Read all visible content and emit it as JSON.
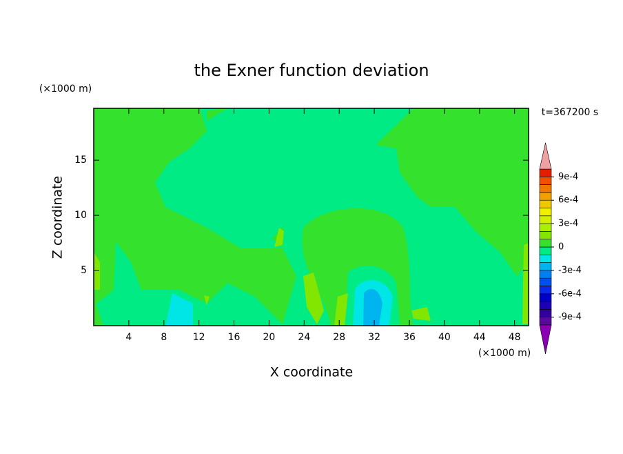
{
  "chart_data": {
    "type": "contour",
    "title": "the Exner function deviation",
    "x_label": "X coordinate",
    "y_label": "Z coordinate",
    "x_unit": "(×1000 m)",
    "y_unit": "(×1000 m)",
    "annotation": "t=367200 s",
    "xlim": [
      0,
      49.6
    ],
    "ylim": [
      0,
      19.7
    ],
    "xticks": [
      4,
      8,
      12,
      16,
      20,
      24,
      28,
      32,
      36,
      40,
      44,
      48
    ],
    "yticks": [
      5,
      10,
      15
    ],
    "levels": [
      -0.001,
      -0.0009,
      -0.0008,
      -0.0007,
      -0.0006,
      -0.0005,
      -0.0004,
      -0.0003,
      -0.0002,
      -0.0001,
      0,
      0.0001,
      0.0002,
      0.0003,
      0.0004,
      0.0005,
      0.0006,
      0.0007,
      0.0008,
      0.0009,
      0.001
    ],
    "colors": [
      "#5a0a9a",
      "#32009e",
      "#1e00b4",
      "#0000c8",
      "#0a28e6",
      "#0050f0",
      "#0080f0",
      "#00b4f0",
      "#00e6e6",
      "#00eb84",
      "#34e22e",
      "#82e600",
      "#aaf000",
      "#d2f000",
      "#f0f000",
      "#f0c800",
      "#f0a000",
      "#f07800",
      "#f05000",
      "#e61e00"
    ],
    "extend_colors": [
      "#8c00b4",
      "#f0a0a0"
    ],
    "colorbar_ticks": [
      {
        "value": -0.0009,
        "label": "-9e-4"
      },
      {
        "value": -0.0006,
        "label": "-6e-4"
      },
      {
        "value": -0.0003,
        "label": "-3e-4"
      },
      0,
      {
        "value": 0.0003,
        "label": "3e-4"
      },
      {
        "value": 0.0006,
        "label": "6e-4"
      },
      {
        "value": 0.0009,
        "label": "9e-4"
      }
    ]
  }
}
